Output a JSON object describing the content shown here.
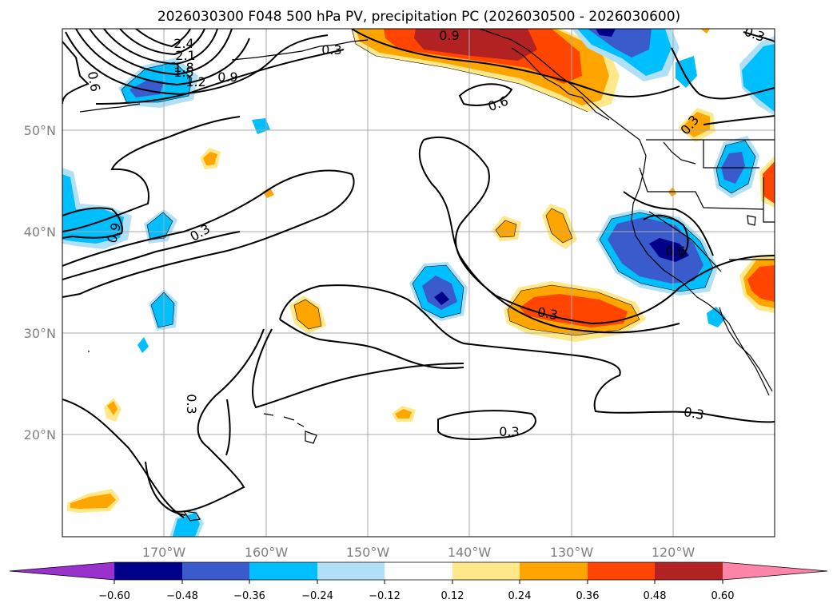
{
  "title": "2026030300 F048 500 hPa PV, precipitation PC (2026030500 - 2026030600)",
  "map": {
    "lon_range": [
      -180,
      -110
    ],
    "lat_range": [
      10,
      60
    ],
    "lat_labels": [
      "50°N",
      "40°N",
      "30°N",
      "20°N"
    ],
    "lon_labels": [
      "170°W",
      "160°W",
      "150°W",
      "140°W",
      "130°W",
      "120°W"
    ],
    "contour_labels": [
      "2.4",
      "2.1",
      "1.8",
      "1.5",
      "1.2",
      "0.9",
      "0.6",
      "0.3",
      "0.9",
      "0.3",
      "0.6",
      "0.3",
      "0.9",
      "0.3",
      "0.6",
      "0.3",
      "0.3",
      "0.3",
      "0.3",
      "0.3"
    ]
  },
  "colorbar": {
    "ticks": [
      "−0.60",
      "−0.48",
      "−0.36",
      "−0.24",
      "−0.12",
      "0.12",
      "0.24",
      "0.36",
      "0.48",
      "0.60"
    ],
    "colors": [
      "#9932CC",
      "#00008B",
      "#3A5BCC",
      "#00BFFF",
      "#B0E0F6",
      "#FFFFFF",
      "#FFE88A",
      "#FFA500",
      "#FF4500",
      "#B22222",
      "#FF85A8"
    ]
  }
}
